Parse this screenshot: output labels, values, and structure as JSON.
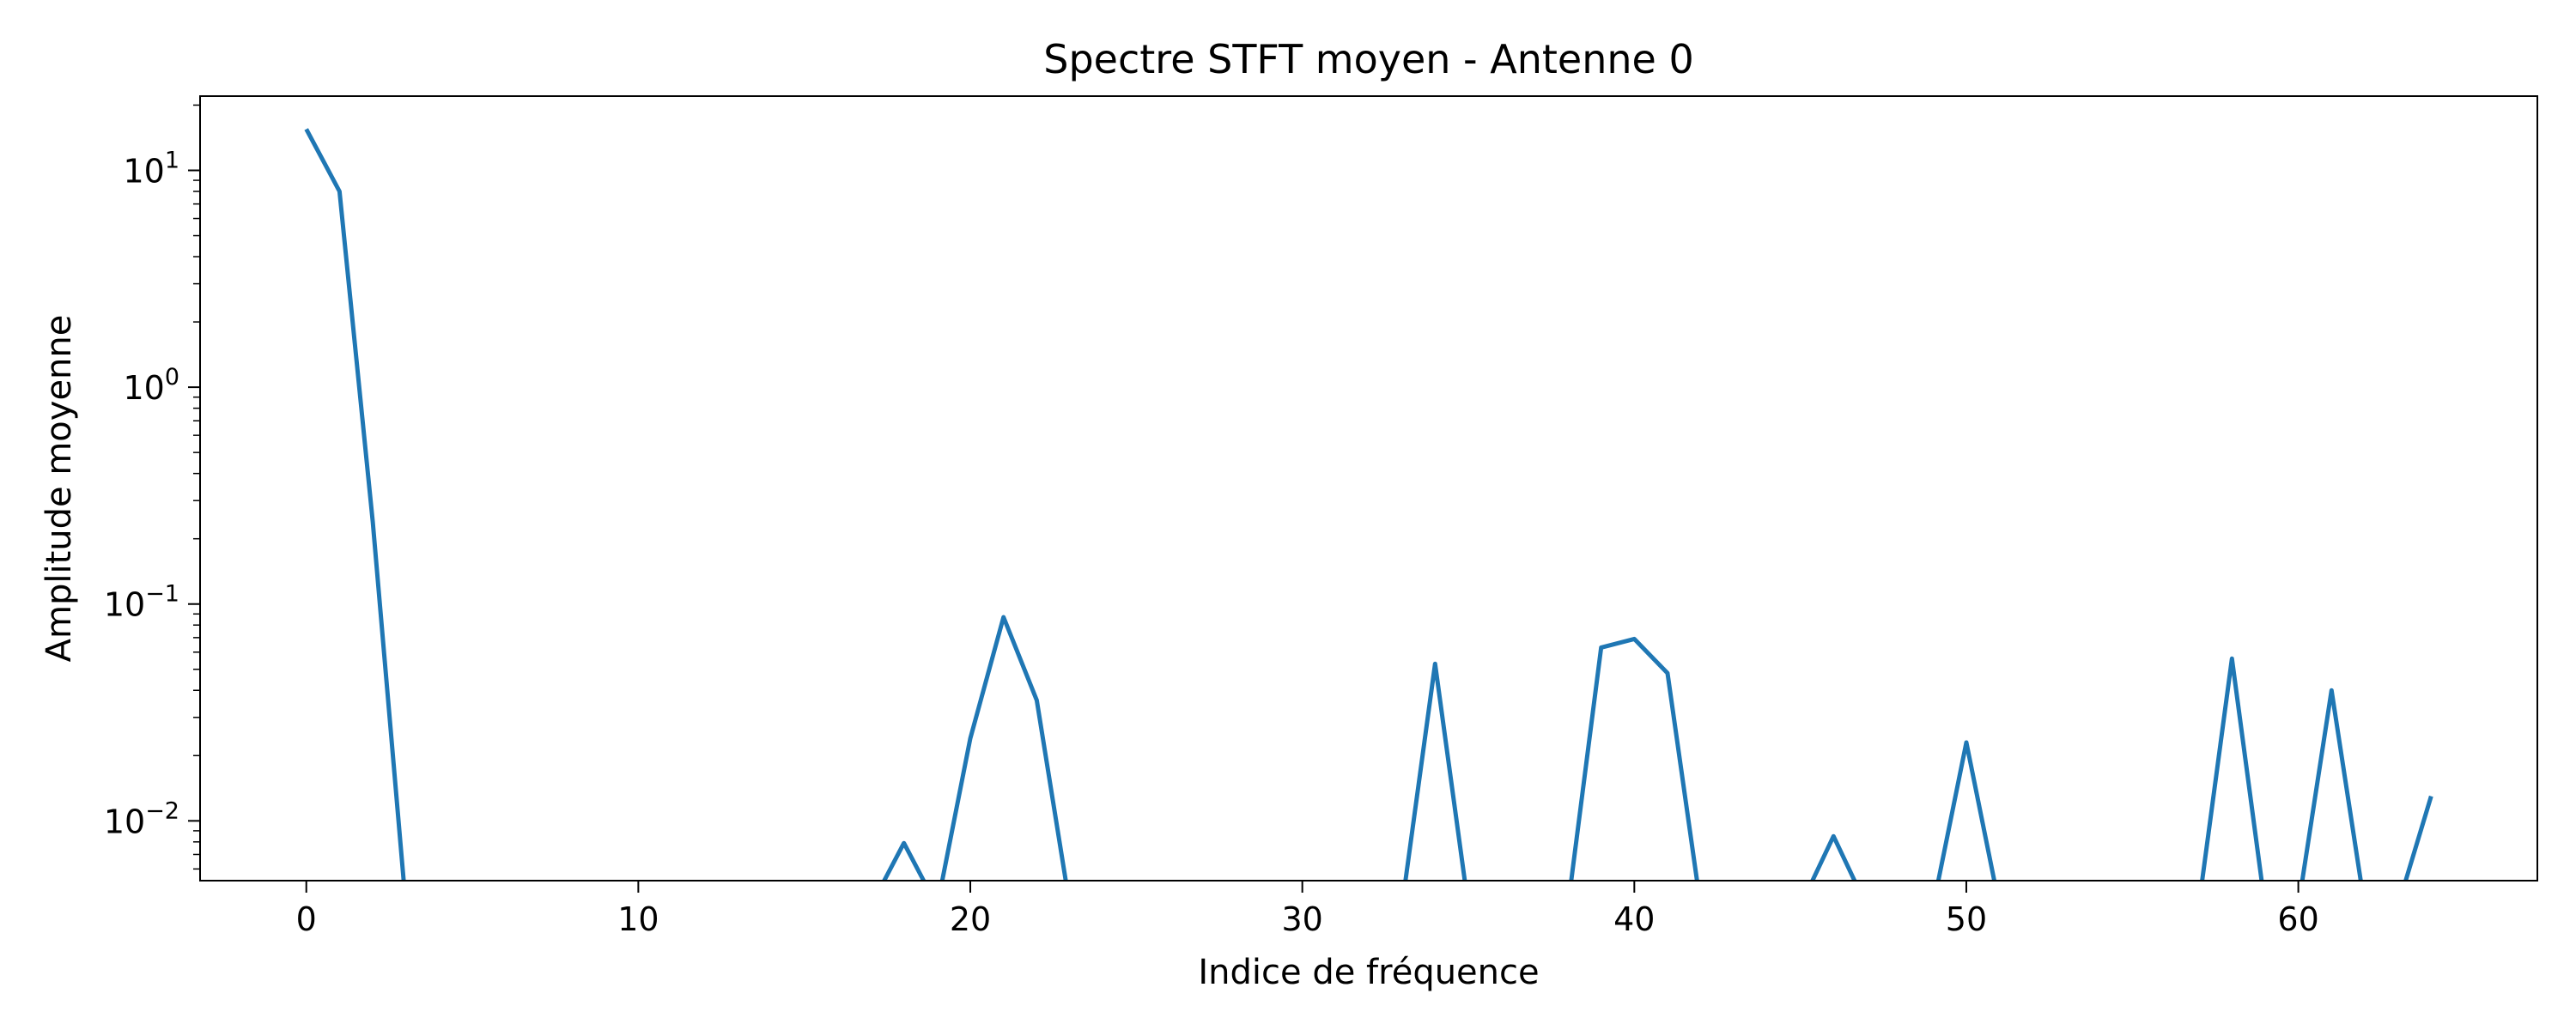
{
  "chart_data": {
    "type": "line",
    "title": "Spectre STFT moyen - Antenne 0",
    "xlabel": "Indice de fréquence",
    "ylabel": "Amplitude moyenne",
    "yscale": "log",
    "xlim": [
      -3.2,
      67.2
    ],
    "ylim": [
      0.0053,
      22
    ],
    "grid": false,
    "legend": "none",
    "line_color": "#1f77b4",
    "xticks": [
      0,
      10,
      20,
      30,
      40,
      50,
      60
    ],
    "xtick_labels": [
      "0",
      "10",
      "20",
      "30",
      "40",
      "50",
      "60"
    ],
    "yticks": [
      0.01,
      0.1,
      1,
      10
    ],
    "ytick_labels": [
      {
        "base": "10",
        "exp": "−2"
      },
      {
        "base": "10",
        "exp": "−1"
      },
      {
        "base": "10",
        "exp": "0"
      },
      {
        "base": "10",
        "exp": "1"
      }
    ],
    "series": [
      {
        "x": [
          0,
          1,
          2,
          3,
          4,
          5,
          6,
          7,
          8,
          9,
          10,
          11,
          12,
          13,
          14,
          15,
          16,
          17,
          18,
          19,
          20,
          21,
          22,
          23,
          24,
          25,
          26,
          27,
          28,
          29,
          30,
          31,
          32,
          33,
          34,
          35,
          36,
          37,
          38,
          39,
          40,
          41,
          42,
          43,
          44,
          45,
          46,
          47,
          48,
          49,
          50,
          51,
          52,
          53,
          54,
          55,
          56,
          57,
          58,
          59,
          60,
          61,
          62,
          63,
          64
        ],
        "y": [
          15.5,
          8.0,
          0.24,
          0,
          0,
          0,
          0,
          0,
          0,
          0,
          0,
          0,
          0,
          0,
          0,
          0,
          0,
          0,
          0.0079,
          0,
          0.024,
          0.087,
          0.036,
          0,
          0,
          0,
          0,
          0,
          0,
          0,
          0,
          0,
          0,
          0,
          0.053,
          0,
          0,
          0,
          0,
          0.063,
          0.069,
          0.048,
          0,
          0,
          0,
          0,
          0.0085,
          0,
          0,
          0,
          0.023,
          0,
          0,
          0,
          0,
          0,
          0,
          0,
          0.056,
          0,
          0,
          0.04,
          0,
          0,
          0.013
        ]
      }
    ]
  }
}
